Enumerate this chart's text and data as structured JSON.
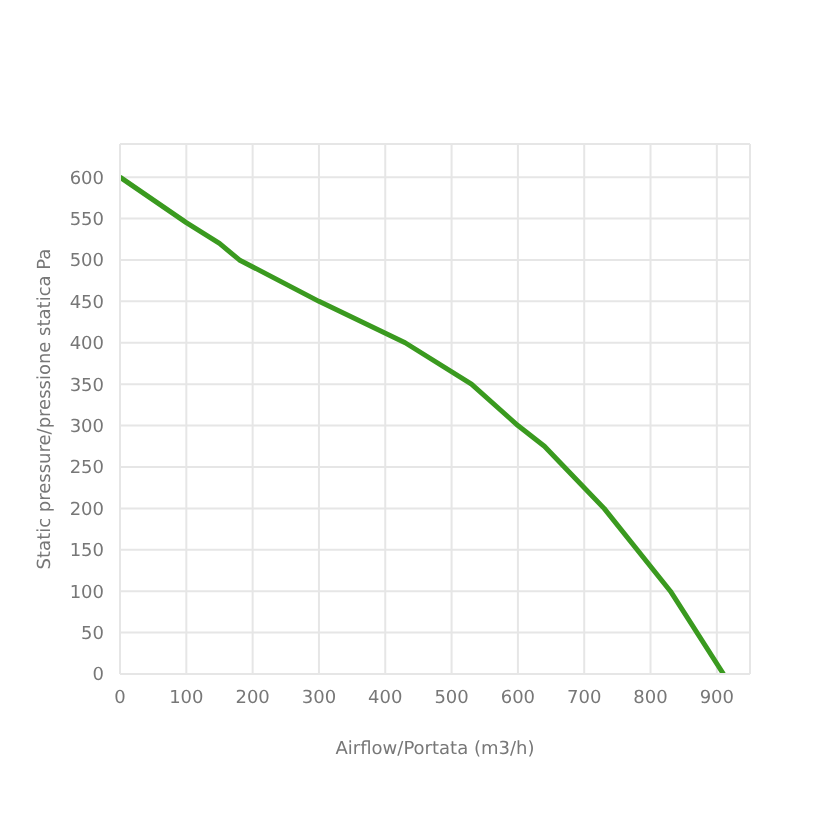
{
  "chart_data": {
    "type": "line",
    "xlabel": "Airflow/Portata (m3/h)",
    "ylabel": "Static pressure/pressione statica Pa",
    "x": [
      0,
      100,
      150,
      180,
      300,
      430,
      530,
      600,
      640,
      670,
      730,
      830,
      910
    ],
    "series": [
      {
        "color": "#3a9a1f",
        "values": [
          600,
          545,
          520,
          500,
          450,
          400,
          350,
          300,
          275,
          250,
          200,
          100,
          0
        ]
      }
    ],
    "xlim": [
      0,
      950
    ],
    "xticks": [
      0,
      100,
      200,
      300,
      400,
      500,
      600,
      700,
      800,
      900
    ],
    "ylim": [
      0,
      640
    ],
    "yticks": [
      0,
      50,
      100,
      150,
      200,
      250,
      300,
      350,
      400,
      450,
      500,
      550,
      600
    ],
    "grid": true,
    "marker": "none",
    "line_style": "solid"
  }
}
